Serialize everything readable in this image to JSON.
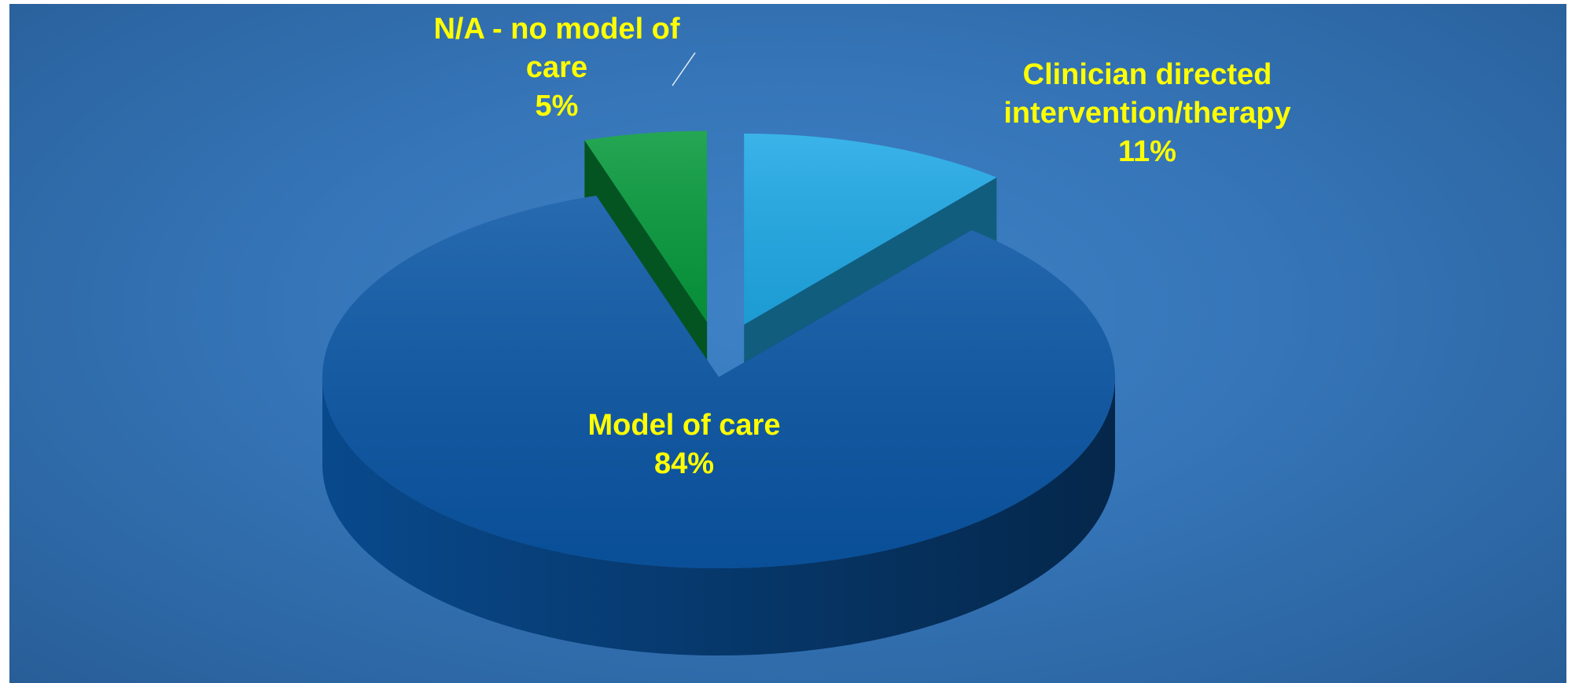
{
  "chart_data": {
    "type": "pie",
    "categories": [
      "Clinician directed intervention/therapy",
      "Model of care",
      "N/A - no model of care"
    ],
    "values": [
      11,
      84,
      5
    ],
    "value_labels": [
      "11%",
      "84%",
      "5%"
    ],
    "colors": [
      "#1fa9e6",
      "#0a56a5",
      "#079a3c"
    ]
  }
}
